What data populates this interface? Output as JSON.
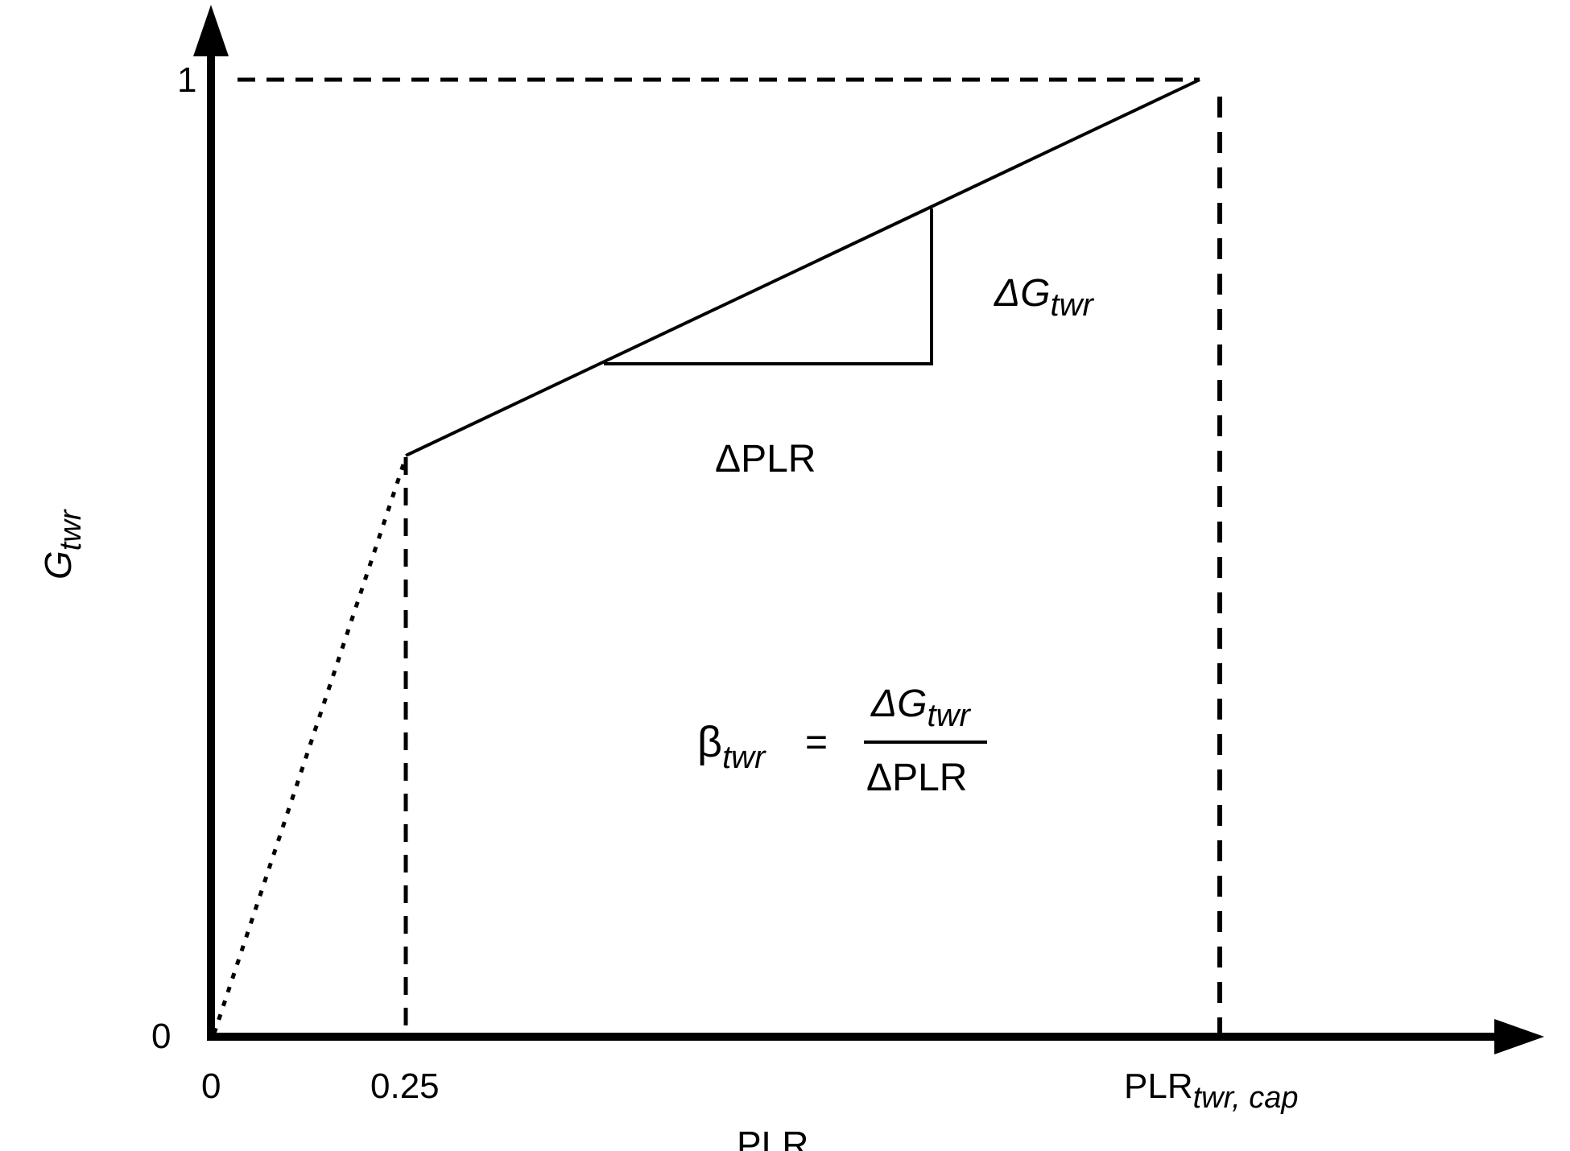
{
  "colors": {
    "stroke": "#000000",
    "background": "#ffffff"
  },
  "axes": {
    "x_label": "PLR",
    "y_label_main": "G",
    "y_label_sub": "twr",
    "x_tick_0": "0",
    "x_tick_025": "0.25",
    "x_tick_cap_main": "PLR",
    "x_tick_cap_sub": "twr, cap",
    "y_tick_0": "0",
    "y_tick_1": "1"
  },
  "annotations": {
    "delta_g_main": "ΔG",
    "delta_g_sub": "twr",
    "delta_plr": "ΔPLR",
    "formula_beta_main": "β",
    "formula_beta_sub": "twr",
    "formula_equals": "=",
    "formula_num_main": "ΔG",
    "formula_num_sub": "twr",
    "formula_den": "ΔPLR"
  }
}
